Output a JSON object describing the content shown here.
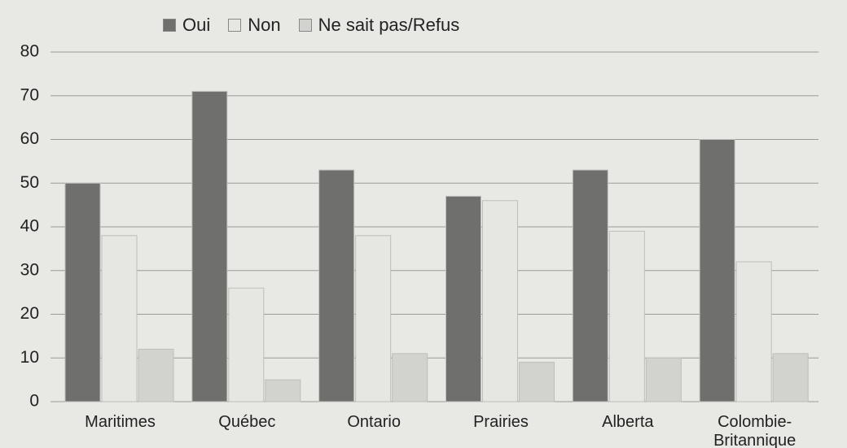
{
  "chart_data": {
    "type": "bar",
    "categories": [
      "Maritimes",
      "Québec",
      "Ontario",
      "Prairies",
      "Alberta",
      "Colombie-Britannique"
    ],
    "series": [
      {
        "name": "Oui",
        "color": "#6f6f6d",
        "values": [
          50,
          71,
          53,
          47,
          53,
          60
        ]
      },
      {
        "name": "Non",
        "color": "#e6e6e3",
        "values": [
          38,
          26,
          38,
          46,
          39,
          32
        ]
      },
      {
        "name": "Ne sait pas/Refus",
        "color": "#d2d2cf",
        "values": [
          12,
          5,
          11,
          9,
          10,
          11
        ]
      }
    ],
    "ylim": [
      0,
      80
    ],
    "yticks": [
      0,
      10,
      20,
      30,
      40,
      50,
      60,
      70,
      80
    ],
    "grid": true,
    "legend": "top"
  }
}
